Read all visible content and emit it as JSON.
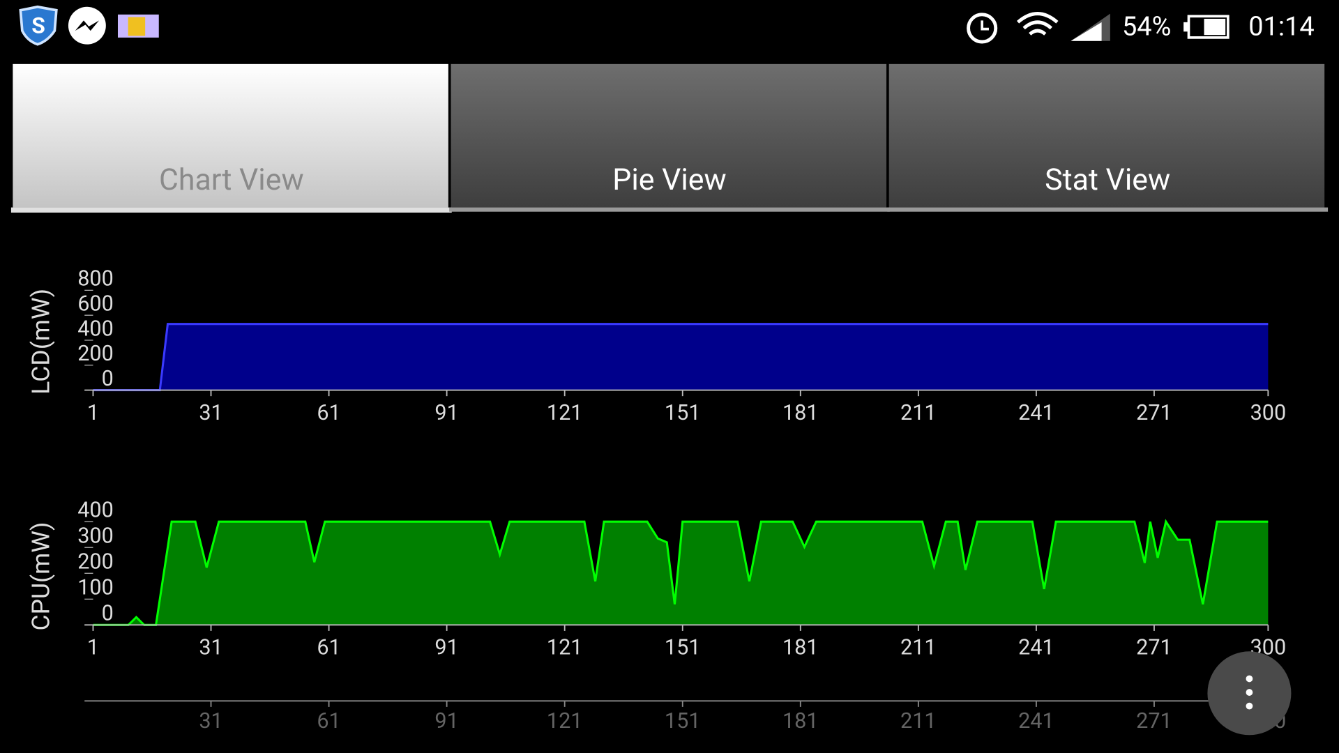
{
  "status_bar": {
    "battery": "54%",
    "time": "01:14"
  },
  "tabs": [
    {
      "label": "Chart View",
      "selected": true
    },
    {
      "label": "Pie View",
      "selected": false
    },
    {
      "label": "Stat View",
      "selected": false
    }
  ],
  "chart_data": [
    {
      "type": "area",
      "y_label": "LCD(mW)",
      "color": "#00008b",
      "line_color": "#3a3aff",
      "x": [
        1,
        18,
        20,
        300
      ],
      "values": [
        0,
        0,
        530,
        530
      ],
      "xlim": [
        1,
        300
      ],
      "ylim": [
        0,
        800
      ],
      "yticks": [
        0,
        200,
        400,
        600,
        800
      ],
      "xticks": [
        1,
        31,
        61,
        91,
        121,
        151,
        181,
        211,
        241,
        271,
        300
      ]
    },
    {
      "type": "area",
      "y_label": "CPU(mW)",
      "color": "#008000",
      "line_color": "#00ff00",
      "x": [
        1,
        10,
        12,
        14,
        17,
        21,
        27,
        29.9,
        33,
        55,
        57.3,
        60,
        102,
        104.5,
        107,
        126,
        128.8,
        131,
        142,
        144.7,
        147,
        149,
        151,
        165,
        168,
        171,
        179,
        182,
        185,
        212,
        215,
        218,
        221,
        223,
        226,
        240,
        243,
        246,
        266,
        268.6,
        270,
        271.9,
        274,
        277,
        280,
        283.4,
        287,
        300
      ],
      "values": [
        0,
        0,
        30,
        0,
        0,
        400,
        400,
        222,
        400,
        400,
        243,
        400,
        400,
        273,
        400,
        400,
        169,
        400,
        400,
        335,
        320,
        80,
        400,
        400,
        169,
        400,
        400,
        302,
        400,
        400,
        228,
        400,
        400,
        213,
        400,
        400,
        139,
        400,
        400,
        240,
        400,
        260,
        400,
        330,
        330,
        80,
        400,
        400
      ],
      "xlim": [
        1,
        300
      ],
      "ylim": [
        0,
        400
      ],
      "yticks": [
        0,
        100,
        200,
        300,
        400
      ],
      "xticks": [
        1,
        31,
        61,
        91,
        121,
        151,
        181,
        211,
        241,
        271,
        300
      ]
    },
    {
      "type": "axis-only",
      "xlim": [
        1,
        300
      ],
      "xticks": [
        31,
        61,
        91,
        121,
        151,
        181,
        211,
        241,
        271,
        300
      ]
    }
  ]
}
